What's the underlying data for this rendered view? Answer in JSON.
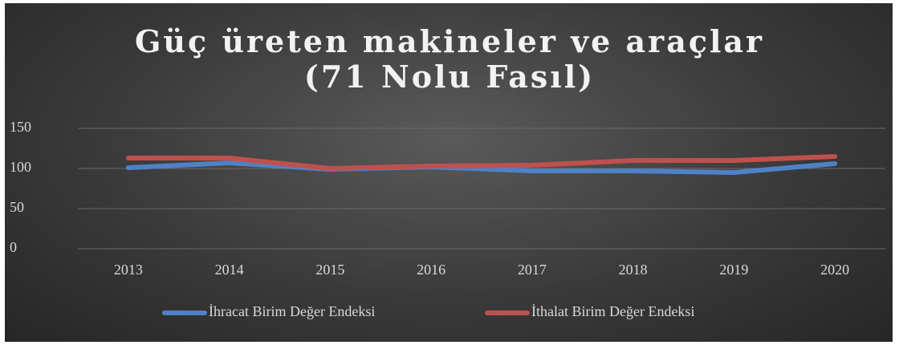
{
  "chart_data": {
    "type": "line",
    "title": "Güç üreten makineler ve araçlar (71 Nolu Fasıl)",
    "categories": [
      "2013",
      "2014",
      "2015",
      "2016",
      "2017",
      "2018",
      "2019",
      "2020"
    ],
    "series": [
      {
        "name": "İhracat Birim Değer Endeksi",
        "color": "#4f81c7",
        "values": [
          101,
          107,
          99,
          102,
          97,
          97,
          95,
          106
        ]
      },
      {
        "name": "İthalat Birim Değer Endeksi",
        "color": "#c0504d",
        "values": [
          113,
          113,
          100,
          103,
          104,
          110,
          110,
          115
        ]
      }
    ],
    "ylim": [
      0,
      150
    ],
    "yticks": [
      0,
      50,
      100,
      150
    ],
    "grid": true,
    "legend": "bottom"
  }
}
